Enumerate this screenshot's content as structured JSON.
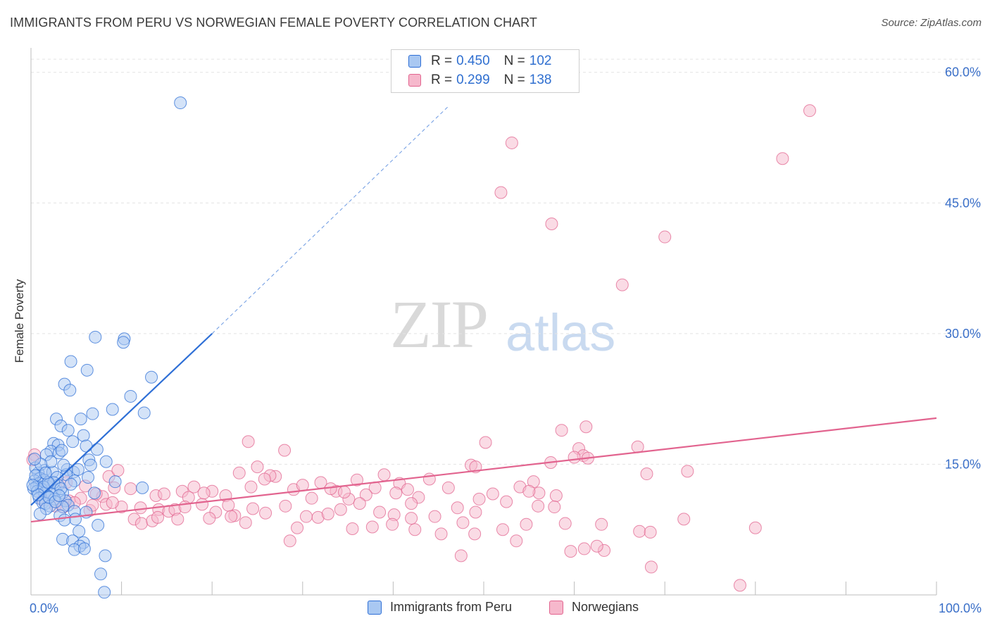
{
  "title": "IMMIGRANTS FROM PERU VS NORWEGIAN FEMALE POVERTY CORRELATION CHART",
  "source": "Source: ZipAtlas.com",
  "watermark": {
    "part1": "ZIP",
    "part2": "atlas"
  },
  "legend_top": [
    {
      "r_label": "R =",
      "r_value": "0.450",
      "n_label": "N =",
      "n_value": "102"
    },
    {
      "r_label": "R =",
      "r_value": "0.299",
      "n_label": "N =",
      "n_value": "138"
    }
  ],
  "legend_bottom": [
    "Immigrants from Peru",
    "Norwegians"
  ],
  "colors": {
    "peru": "#2e6fd6",
    "peru_fill": "#a9c8f2",
    "norw": "#e2648f",
    "norw_fill": "#f6b8cc",
    "tick": "#3a6fc8"
  },
  "chart_data": {
    "type": "scatter",
    "title": "IMMIGRANTS FROM PERU VS NORWEGIAN FEMALE POVERTY CORRELATION CHART",
    "xlabel": "",
    "ylabel": "Female Poverty",
    "xlim": [
      0,
      100
    ],
    "ylim": [
      0,
      62
    ],
    "x_tick_labels": [
      "0.0%",
      "100.0%"
    ],
    "y_ticks": [
      15,
      30,
      45,
      60
    ],
    "y_tick_labels": [
      "15.0%",
      "30.0%",
      "45.0%",
      "60.0%"
    ],
    "grid": true,
    "series": [
      {
        "name": "Immigrants from Peru",
        "r": 0.45,
        "n": 102,
        "trend": {
          "x0": 0,
          "y0": 10.3,
          "x1": 20,
          "y1": 30.0,
          "dash_to_x": 46,
          "dash_to_y": 56.0
        },
        "points": [
          [
            16.5,
            56.5
          ],
          [
            10.3,
            29.4
          ],
          [
            7.1,
            29.6
          ],
          [
            10.2,
            29.0
          ],
          [
            4.4,
            26.8
          ],
          [
            6.2,
            25.8
          ],
          [
            3.7,
            24.2
          ],
          [
            4.3,
            23.5
          ],
          [
            13.3,
            25.0
          ],
          [
            11.0,
            22.8
          ],
          [
            9.0,
            21.3
          ],
          [
            12.5,
            20.9
          ],
          [
            2.8,
            20.2
          ],
          [
            5.5,
            20.2
          ],
          [
            6.8,
            20.8
          ],
          [
            3.3,
            19.4
          ],
          [
            4.1,
            18.9
          ],
          [
            5.8,
            18.3
          ],
          [
            2.5,
            17.4
          ],
          [
            3.0,
            17.2
          ],
          [
            4.6,
            17.6
          ],
          [
            6.1,
            17.1
          ],
          [
            2.2,
            16.5
          ],
          [
            3.1,
            16.3
          ],
          [
            3.4,
            16.6
          ],
          [
            1.7,
            16.1
          ],
          [
            7.3,
            16.7
          ],
          [
            6.4,
            15.5
          ],
          [
            8.3,
            15.3
          ],
          [
            6.6,
            14.9
          ],
          [
            4.0,
            14.4
          ],
          [
            4.7,
            14.1
          ],
          [
            1.5,
            14.3
          ],
          [
            0.8,
            14.0
          ],
          [
            2.4,
            14.1
          ],
          [
            3.9,
            13.8
          ],
          [
            0.5,
            14.6
          ],
          [
            1.0,
            13.4
          ],
          [
            0.4,
            13.1
          ],
          [
            2.9,
            13.5
          ],
          [
            1.4,
            13.2
          ],
          [
            4.8,
            13.1
          ],
          [
            9.3,
            13.0
          ],
          [
            0.9,
            12.8
          ],
          [
            1.8,
            12.5
          ],
          [
            0.6,
            12.4
          ],
          [
            2.0,
            12.7
          ],
          [
            3.0,
            12.6
          ],
          [
            0.3,
            12.2
          ],
          [
            1.2,
            12.1
          ],
          [
            2.7,
            12.0
          ],
          [
            0.7,
            11.9
          ],
          [
            1.5,
            11.7
          ],
          [
            2.3,
            11.6
          ],
          [
            3.5,
            11.7
          ],
          [
            7.0,
            11.7
          ],
          [
            1.9,
            11.3
          ],
          [
            0.9,
            11.1
          ],
          [
            2.6,
            11.0
          ],
          [
            3.8,
            10.8
          ],
          [
            1.3,
            10.6
          ],
          [
            1.6,
            10.5
          ],
          [
            4.1,
            10.3
          ],
          [
            2.1,
            10.2
          ],
          [
            3.5,
            10.1
          ],
          [
            1.7,
            9.9
          ],
          [
            4.8,
            9.6
          ],
          [
            6.1,
            9.5
          ],
          [
            1.0,
            9.3
          ],
          [
            3.2,
            9.1
          ],
          [
            4.9,
            8.7
          ],
          [
            3.7,
            8.6
          ],
          [
            7.4,
            8.0
          ],
          [
            5.3,
            7.3
          ],
          [
            3.5,
            6.4
          ],
          [
            4.6,
            6.2
          ],
          [
            5.8,
            6.0
          ],
          [
            5.4,
            5.6
          ],
          [
            4.8,
            5.2
          ],
          [
            5.9,
            5.3
          ],
          [
            8.2,
            4.5
          ],
          [
            7.7,
            2.4
          ],
          [
            8.1,
            0.3
          ],
          [
            12.3,
            12.3
          ],
          [
            2.2,
            15.3
          ],
          [
            3.6,
            14.9
          ],
          [
            5.2,
            14.4
          ],
          [
            6.3,
            13.5
          ],
          [
            1.1,
            15.0
          ],
          [
            0.4,
            15.6
          ],
          [
            2.5,
            12.9
          ],
          [
            1.4,
            12.4
          ],
          [
            0.8,
            11.5
          ],
          [
            3.3,
            12.2
          ],
          [
            2.0,
            11.2
          ],
          [
            2.7,
            10.7
          ],
          [
            1.9,
            12.9
          ],
          [
            0.5,
            13.7
          ],
          [
            3.1,
            11.4
          ],
          [
            1.6,
            14.0
          ],
          [
            4.4,
            12.7
          ],
          [
            0.2,
            12.6
          ]
        ]
      },
      {
        "name": "Norwegians",
        "r": 0.299,
        "n": 138,
        "trend": {
          "x0": 0,
          "y0": 8.4,
          "x1": 100,
          "y1": 20.3
        },
        "points": [
          [
            86.0,
            55.6
          ],
          [
            53.1,
            51.9
          ],
          [
            83.0,
            50.1
          ],
          [
            51.9,
            46.2
          ],
          [
            57.5,
            42.6
          ],
          [
            70.0,
            41.1
          ],
          [
            65.3,
            35.6
          ],
          [
            72.5,
            14.2
          ],
          [
            58.6,
            18.9
          ],
          [
            61.3,
            19.3
          ],
          [
            50.2,
            17.5
          ],
          [
            67.0,
            17.0
          ],
          [
            60.5,
            16.8
          ],
          [
            61.0,
            16.0
          ],
          [
            28.0,
            16.6
          ],
          [
            24.0,
            17.6
          ],
          [
            60.0,
            15.8
          ],
          [
            61.5,
            15.7
          ],
          [
            57.4,
            15.2
          ],
          [
            68.0,
            13.9
          ],
          [
            48.6,
            14.9
          ],
          [
            49.1,
            14.7
          ],
          [
            39.0,
            13.8
          ],
          [
            25.0,
            14.7
          ],
          [
            36.0,
            13.2
          ],
          [
            23.0,
            14.0
          ],
          [
            27.0,
            13.6
          ],
          [
            32.0,
            12.9
          ],
          [
            38.0,
            12.3
          ],
          [
            40.7,
            12.8
          ],
          [
            44.0,
            13.3
          ],
          [
            46.1,
            12.3
          ],
          [
            54.0,
            12.4
          ],
          [
            55.5,
            13.0
          ],
          [
            56.1,
            11.7
          ],
          [
            41.6,
            12.1
          ],
          [
            42.8,
            11.2
          ],
          [
            49.5,
            11.0
          ],
          [
            51.0,
            11.6
          ],
          [
            58.0,
            11.4
          ],
          [
            20.0,
            11.9
          ],
          [
            21.5,
            11.4
          ],
          [
            24.3,
            12.4
          ],
          [
            26.4,
            13.7
          ],
          [
            29.0,
            12.1
          ],
          [
            30.0,
            12.6
          ],
          [
            33.7,
            11.9
          ],
          [
            35.1,
            11.0
          ],
          [
            37.0,
            11.5
          ],
          [
            18.0,
            12.4
          ],
          [
            16.7,
            11.9
          ],
          [
            17.4,
            11.2
          ],
          [
            13.8,
            11.4
          ],
          [
            11.0,
            12.2
          ],
          [
            9.2,
            12.3
          ],
          [
            8.6,
            13.6
          ],
          [
            9.6,
            14.3
          ],
          [
            7.9,
            11.3
          ],
          [
            7.2,
            11.6
          ],
          [
            6.0,
            12.5
          ],
          [
            5.5,
            11.1
          ],
          [
            4.2,
            10.8
          ],
          [
            4.8,
            10.6
          ],
          [
            2.7,
            10.2
          ],
          [
            3.6,
            10.1
          ],
          [
            6.5,
            9.7
          ],
          [
            8.3,
            10.4
          ],
          [
            10.0,
            10.1
          ],
          [
            12.1,
            10.0
          ],
          [
            14.1,
            9.8
          ],
          [
            15.2,
            9.6
          ],
          [
            15.9,
            9.8
          ],
          [
            18.9,
            10.4
          ],
          [
            20.4,
            9.5
          ],
          [
            21.8,
            10.3
          ],
          [
            22.5,
            9.1
          ],
          [
            24.5,
            9.9
          ],
          [
            25.9,
            9.4
          ],
          [
            28.1,
            10.2
          ],
          [
            30.4,
            9.0
          ],
          [
            31.7,
            8.9
          ],
          [
            32.8,
            9.3
          ],
          [
            34.2,
            9.8
          ],
          [
            36.3,
            10.5
          ],
          [
            38.5,
            9.5
          ],
          [
            40.1,
            9.2
          ],
          [
            42.0,
            10.5
          ],
          [
            44.6,
            9.0
          ],
          [
            47.1,
            10.0
          ],
          [
            49.1,
            9.5
          ],
          [
            52.5,
            10.7
          ],
          [
            56.0,
            10.2
          ],
          [
            57.8,
            10.1
          ],
          [
            11.4,
            8.7
          ],
          [
            12.2,
            8.2
          ],
          [
            13.4,
            8.5
          ],
          [
            14.0,
            8.9
          ],
          [
            16.2,
            8.7
          ],
          [
            19.7,
            8.8
          ],
          [
            22.1,
            9.0
          ],
          [
            23.7,
            8.3
          ],
          [
            29.4,
            7.7
          ],
          [
            35.5,
            7.6
          ],
          [
            37.7,
            7.8
          ],
          [
            42.4,
            7.5
          ],
          [
            45.3,
            7.0
          ],
          [
            47.7,
            8.3
          ],
          [
            52.1,
            7.5
          ],
          [
            54.7,
            8.1
          ],
          [
            59.0,
            8.2
          ],
          [
            63.0,
            8.1
          ],
          [
            67.2,
            7.3
          ],
          [
            68.4,
            7.2
          ],
          [
            72.1,
            8.7
          ],
          [
            80.0,
            7.7
          ],
          [
            42.0,
            8.8
          ],
          [
            39.9,
            8.1
          ],
          [
            49.0,
            7.0
          ],
          [
            53.6,
            6.2
          ],
          [
            28.6,
            6.2
          ],
          [
            47.5,
            4.5
          ],
          [
            59.6,
            5.0
          ],
          [
            61.1,
            5.3
          ],
          [
            63.3,
            5.1
          ],
          [
            68.5,
            3.2
          ],
          [
            62.5,
            5.6
          ],
          [
            78.3,
            1.1
          ],
          [
            14.7,
            11.6
          ],
          [
            17.0,
            10.1
          ],
          [
            19.1,
            11.7
          ],
          [
            25.8,
            13.3
          ],
          [
            33.1,
            12.2
          ],
          [
            31.0,
            11.1
          ],
          [
            34.6,
            11.8
          ],
          [
            40.3,
            11.7
          ],
          [
            55.0,
            11.9
          ],
          [
            9.0,
            10.6
          ],
          [
            1.3,
            10.9
          ],
          [
            0.4,
            16.1
          ],
          [
            0.2,
            15.5
          ],
          [
            6.8,
            10.3
          ],
          [
            3.9,
            12.9
          ]
        ]
      }
    ]
  }
}
